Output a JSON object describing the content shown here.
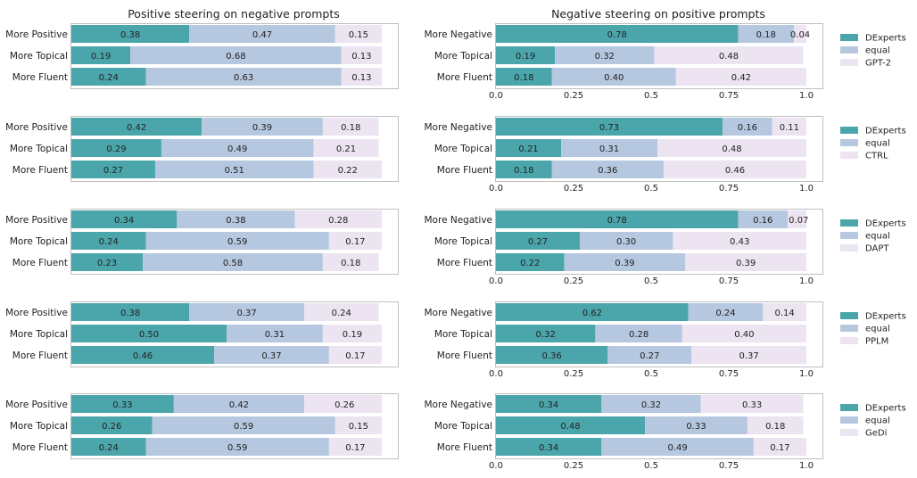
{
  "titles": {
    "left": "Positive steering on negative prompts",
    "right": "Negative steering on positive prompts"
  },
  "colors": {
    "dexperts": "#4ba6ab",
    "equal": "#b6c7e0",
    "baseline": "#ede4f2",
    "axis_frame": "#bfbfbf"
  },
  "x_ticks": [
    "0.0",
    "0.25",
    "0.5",
    "0.75",
    "1.0"
  ],
  "legend_common": [
    "DExperts",
    "equal"
  ],
  "chart_data": [
    {
      "type": "bar",
      "orientation": "horizontal",
      "stacked": true,
      "panel": "left",
      "row": 0,
      "categories": [
        "More Positive",
        "More Topical",
        "More Fluent"
      ],
      "series": [
        {
          "name": "DExperts",
          "values": [
            0.38,
            0.19,
            0.24
          ]
        },
        {
          "name": "equal",
          "values": [
            0.47,
            0.68,
            0.63
          ]
        },
        {
          "name": "GPT-2",
          "values": [
            0.15,
            0.13,
            0.13
          ]
        }
      ],
      "xlim": [
        0,
        1
      ]
    },
    {
      "type": "bar",
      "orientation": "horizontal",
      "stacked": true,
      "panel": "right",
      "row": 0,
      "categories": [
        "More Negative",
        "More Topical",
        "More Fluent"
      ],
      "series": [
        {
          "name": "DExperts",
          "values": [
            0.78,
            0.19,
            0.18
          ]
        },
        {
          "name": "equal",
          "values": [
            0.18,
            0.32,
            0.4
          ]
        },
        {
          "name": "GPT-2",
          "values": [
            0.04,
            0.48,
            0.42
          ]
        }
      ],
      "xlim": [
        0,
        1
      ]
    },
    {
      "type": "bar",
      "orientation": "horizontal",
      "stacked": true,
      "panel": "left",
      "row": 1,
      "categories": [
        "More Positive",
        "More Topical",
        "More Fluent"
      ],
      "series": [
        {
          "name": "DExperts",
          "values": [
            0.42,
            0.29,
            0.27
          ]
        },
        {
          "name": "equal",
          "values": [
            0.39,
            0.49,
            0.51
          ]
        },
        {
          "name": "CTRL",
          "values": [
            0.18,
            0.21,
            0.22
          ]
        }
      ],
      "xlim": [
        0,
        1
      ]
    },
    {
      "type": "bar",
      "orientation": "horizontal",
      "stacked": true,
      "panel": "right",
      "row": 1,
      "categories": [
        "More Negative",
        "More Topical",
        "More Fluent"
      ],
      "series": [
        {
          "name": "DExperts",
          "values": [
            0.73,
            0.21,
            0.18
          ]
        },
        {
          "name": "equal",
          "values": [
            0.16,
            0.31,
            0.36
          ]
        },
        {
          "name": "CTRL",
          "values": [
            0.11,
            0.48,
            0.46
          ]
        }
      ],
      "xlim": [
        0,
        1
      ]
    },
    {
      "type": "bar",
      "orientation": "horizontal",
      "stacked": true,
      "panel": "left",
      "row": 2,
      "categories": [
        "More Positive",
        "More Topical",
        "More Fluent"
      ],
      "series": [
        {
          "name": "DExperts",
          "values": [
            0.34,
            0.24,
            0.23
          ]
        },
        {
          "name": "equal",
          "values": [
            0.38,
            0.59,
            0.58
          ]
        },
        {
          "name": "DAPT",
          "values": [
            0.28,
            0.17,
            0.18
          ]
        }
      ],
      "xlim": [
        0,
        1
      ]
    },
    {
      "type": "bar",
      "orientation": "horizontal",
      "stacked": true,
      "panel": "right",
      "row": 2,
      "categories": [
        "More Negative",
        "More Topical",
        "More Fluent"
      ],
      "series": [
        {
          "name": "DExperts",
          "values": [
            0.78,
            0.27,
            0.22
          ]
        },
        {
          "name": "equal",
          "values": [
            0.16,
            0.3,
            0.39
          ]
        },
        {
          "name": "DAPT",
          "values": [
            0.07,
            0.43,
            0.39
          ]
        }
      ],
      "xlim": [
        0,
        1
      ]
    },
    {
      "type": "bar",
      "orientation": "horizontal",
      "stacked": true,
      "panel": "left",
      "row": 3,
      "categories": [
        "More Positive",
        "More Topical",
        "More Fluent"
      ],
      "series": [
        {
          "name": "DExperts",
          "values": [
            0.38,
            0.5,
            0.46
          ]
        },
        {
          "name": "equal",
          "values": [
            0.37,
            0.31,
            0.37
          ]
        },
        {
          "name": "PPLM",
          "values": [
            0.24,
            0.19,
            0.17
          ]
        }
      ],
      "xlim": [
        0,
        1
      ]
    },
    {
      "type": "bar",
      "orientation": "horizontal",
      "stacked": true,
      "panel": "right",
      "row": 3,
      "categories": [
        "More Negative",
        "More Topical",
        "More Fluent"
      ],
      "series": [
        {
          "name": "DExperts",
          "values": [
            0.62,
            0.32,
            0.36
          ]
        },
        {
          "name": "equal",
          "values": [
            0.24,
            0.28,
            0.27
          ]
        },
        {
          "name": "PPLM",
          "values": [
            0.14,
            0.4,
            0.37
          ]
        }
      ],
      "xlim": [
        0,
        1
      ]
    },
    {
      "type": "bar",
      "orientation": "horizontal",
      "stacked": true,
      "panel": "left",
      "row": 4,
      "categories": [
        "More Positive",
        "More Topical",
        "More Fluent"
      ],
      "series": [
        {
          "name": "DExperts",
          "values": [
            0.33,
            0.26,
            0.24
          ]
        },
        {
          "name": "equal",
          "values": [
            0.42,
            0.59,
            0.59
          ]
        },
        {
          "name": "GeDi",
          "values": [
            0.26,
            0.15,
            0.17
          ]
        }
      ],
      "xlim": [
        0,
        1
      ]
    },
    {
      "type": "bar",
      "orientation": "horizontal",
      "stacked": true,
      "panel": "right",
      "row": 4,
      "categories": [
        "More Negative",
        "More Topical",
        "More Fluent"
      ],
      "series": [
        {
          "name": "DExperts",
          "values": [
            0.34,
            0.48,
            0.34
          ]
        },
        {
          "name": "equal",
          "values": [
            0.32,
            0.33,
            0.49
          ]
        },
        {
          "name": "GeDi",
          "values": [
            0.33,
            0.18,
            0.17
          ]
        }
      ],
      "xlim": [
        0,
        1
      ]
    }
  ]
}
